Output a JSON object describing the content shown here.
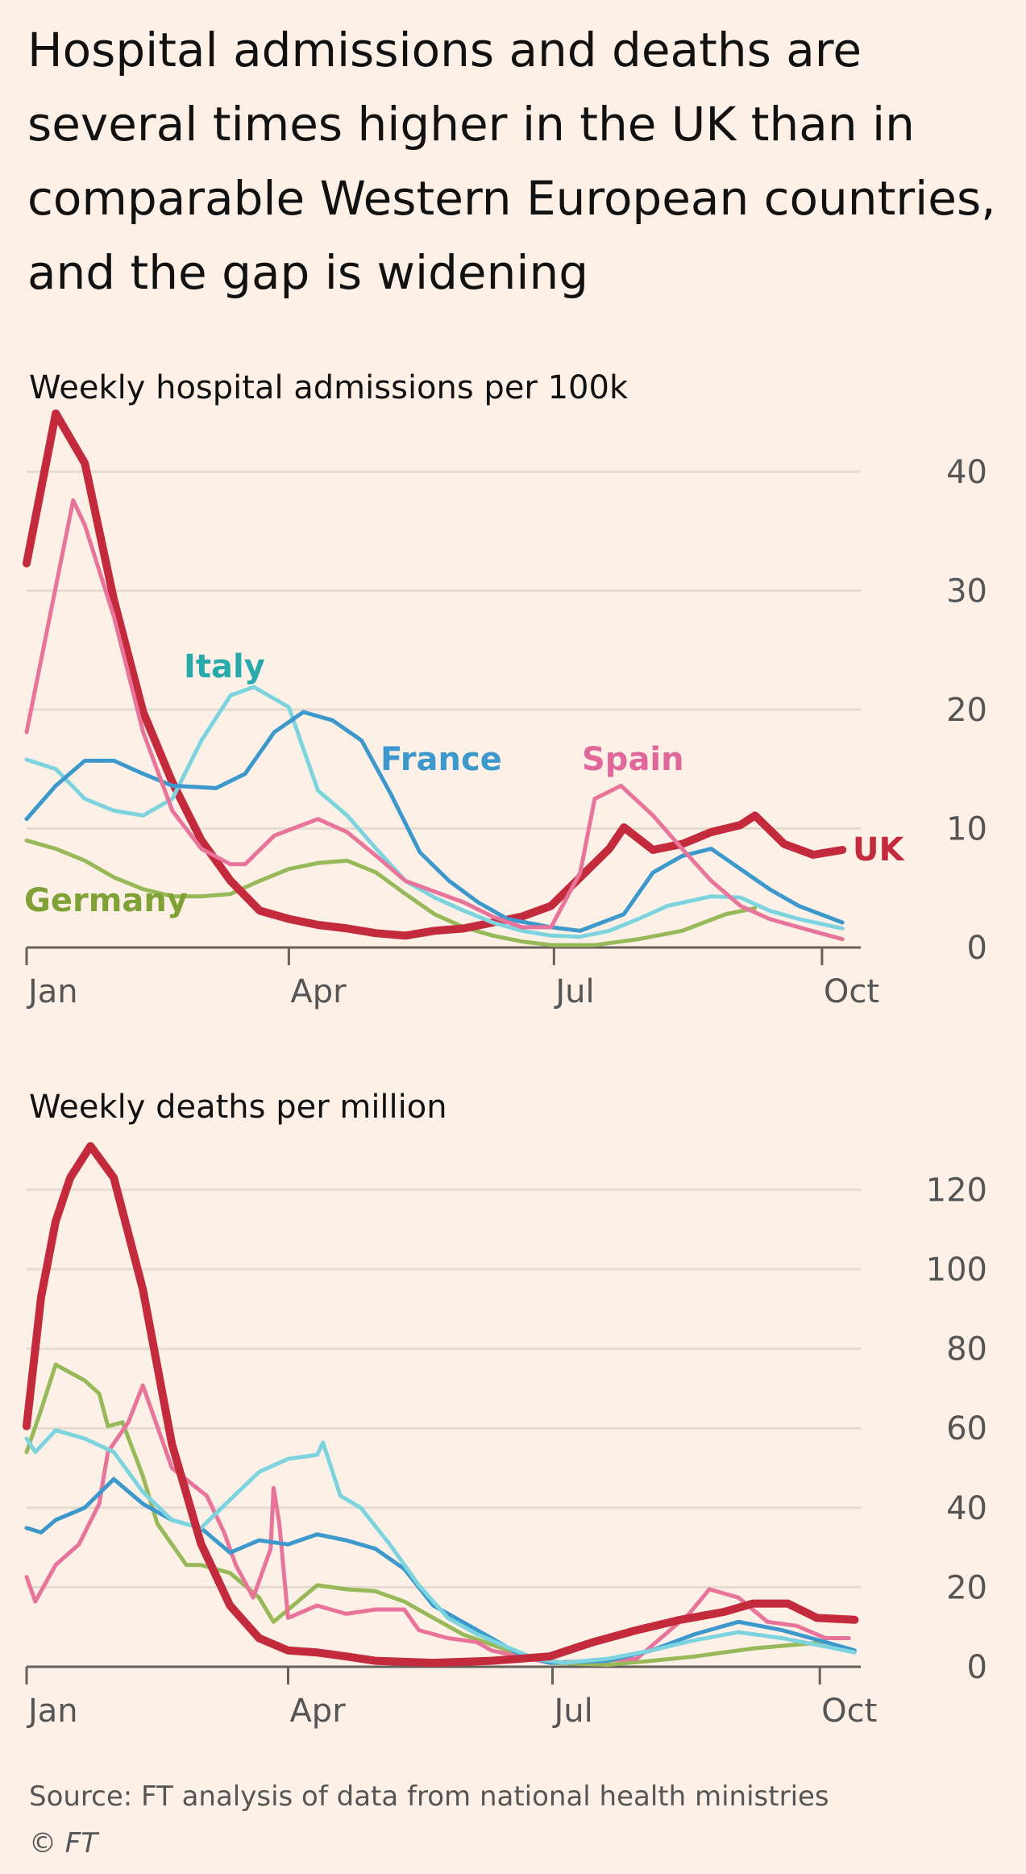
{
  "title": "Hospital admissions and deaths are several times higher in the UK than in comparable Western European countries, and the gap is widening",
  "source": "Source: FT analysis of data from national health ministries",
  "copyright": "© FT",
  "colors": {
    "background": "#fdf1e7",
    "UK": "#c32a3c",
    "Spain": "#e8739b",
    "France": "#3d98cc",
    "Italy": "#7dd4df",
    "Germany": "#98b95a",
    "grid": "#e6dbd1",
    "axis": "#66605a"
  },
  "label_colors": {
    "UK": "#c32a3c",
    "Spain": "#e0679a",
    "France": "#3d98cc",
    "Italy": "#2aa9ad",
    "Germany": "#7fa136"
  },
  "chart_data": [
    {
      "type": "line",
      "title": "Weekly hospital admissions per 100k",
      "xlabel": "",
      "ylabel": "",
      "x_unit": "days since 1 Jan",
      "xticks": [
        {
          "day": 0,
          "label": "Jan"
        },
        {
          "day": 90,
          "label": "Apr"
        },
        {
          "day": 181,
          "label": "Jul"
        },
        {
          "day": 273,
          "label": "Oct"
        }
      ],
      "yticks": [
        0,
        10,
        20,
        30,
        40
      ],
      "ylim": [
        0,
        45
      ],
      "grid": true,
      "series": [
        {
          "name": "Germany",
          "label": "Germany",
          "x": [
            0,
            10,
            20,
            30,
            40,
            50,
            60,
            70,
            80,
            90,
            100,
            110,
            120,
            130,
            140,
            150,
            160,
            170,
            180,
            195,
            210,
            225,
            240,
            250
          ],
          "values": [
            9,
            8.3,
            7.3,
            5.9,
            4.9,
            4.3,
            4.3,
            4.5,
            5.6,
            6.6,
            7.1,
            7.3,
            6.3,
            4.5,
            2.8,
            1.7,
            1,
            0.5,
            0.2,
            0.2,
            0.7,
            1.4,
            2.8,
            3.3
          ]
        },
        {
          "name": "Italy",
          "label": "Italy",
          "x": [
            0,
            10,
            20,
            30,
            40,
            50,
            60,
            70,
            78,
            90,
            100,
            110,
            120,
            130,
            140,
            150,
            160,
            170,
            180,
            190,
            200,
            210,
            220,
            235,
            245,
            255,
            265,
            280
          ],
          "values": [
            15.8,
            15,
            12.5,
            11.5,
            11.1,
            12.5,
            17.4,
            21.2,
            21.9,
            20.2,
            13.2,
            11.1,
            8.3,
            5.6,
            4.2,
            3.1,
            2.1,
            1.4,
            1,
            0.9,
            1.4,
            2.4,
            3.5,
            4.3,
            4.2,
            3.1,
            2.4,
            1.6
          ]
        },
        {
          "name": "France",
          "label": "France",
          "x": [
            0,
            10,
            20,
            30,
            40,
            50,
            65,
            75,
            85,
            95,
            105,
            115,
            125,
            135,
            145,
            155,
            165,
            180,
            190,
            205,
            215,
            225,
            235,
            245,
            255,
            265,
            280
          ],
          "values": [
            10.8,
            13.6,
            15.7,
            15.7,
            14.6,
            13.6,
            13.4,
            14.6,
            18.1,
            19.8,
            19.1,
            17.4,
            12.9,
            8,
            5.6,
            3.8,
            2.4,
            1.7,
            1.4,
            2.8,
            6.3,
            7.7,
            8.3,
            6.6,
            4.9,
            3.5,
            2.1
          ]
        },
        {
          "name": "Spain",
          "label": "Spain",
          "x": [
            0,
            16,
            20,
            30,
            40,
            50,
            60,
            70,
            75,
            85,
            100,
            110,
            120,
            130,
            140,
            150,
            160,
            170,
            180,
            190,
            195,
            204,
            215,
            225,
            235,
            245,
            255,
            265,
            280
          ],
          "values": [
            18.1,
            37.6,
            35.5,
            27.8,
            18.1,
            11.5,
            8.3,
            7,
            7,
            9.4,
            10.8,
            9.7,
            7.7,
            5.6,
            4.7,
            3.8,
            2.6,
            1.7,
            1.7,
            6.3,
            12.5,
            13.6,
            11.1,
            8.3,
            5.6,
            3.5,
            2.4,
            1.7,
            0.7
          ]
        },
        {
          "name": "UK",
          "label": "UK",
          "x": [
            0,
            10,
            20,
            30,
            40,
            50,
            60,
            70,
            80,
            90,
            100,
            110,
            120,
            130,
            140,
            150,
            160,
            170,
            180,
            190,
            200,
            205,
            215,
            225,
            235,
            245,
            250,
            260,
            270,
            280
          ],
          "values": [
            32.3,
            44.9,
            40.7,
            29.2,
            19.8,
            13.9,
            9,
            5.6,
            3.1,
            2.4,
            1.9,
            1.6,
            1.2,
            1,
            1.4,
            1.6,
            2.1,
            2.6,
            3.5,
            5.9,
            8.3,
            10.1,
            8.2,
            8.7,
            9.7,
            10.3,
            11.1,
            8.7,
            7.8,
            8.2
          ]
        }
      ]
    },
    {
      "type": "line",
      "title": "Weekly deaths per million",
      "xlabel": "",
      "ylabel": "",
      "x_unit": "days since 1 Jan",
      "xticks": [
        {
          "day": 0,
          "label": "Jan"
        },
        {
          "day": 90,
          "label": "Apr"
        },
        {
          "day": 181,
          "label": "Jul"
        },
        {
          "day": 273,
          "label": "Oct"
        }
      ],
      "yticks": [
        0,
        20,
        40,
        60,
        80,
        100,
        120
      ],
      "ylim": [
        0,
        135
      ],
      "grid": true,
      "series": [
        {
          "name": "Germany",
          "x": [
            0,
            5,
            10,
            20,
            25,
            28,
            33,
            40,
            45,
            55,
            60,
            70,
            80,
            85,
            100,
            110,
            120,
            130,
            140,
            150,
            160,
            170,
            180,
            200,
            215,
            230,
            250,
            275
          ],
          "values": [
            54,
            64.6,
            76,
            72,
            68.7,
            60.5,
            61.5,
            48,
            36,
            25.6,
            25.6,
            23.6,
            17.4,
            11.3,
            20.5,
            19.5,
            19,
            16.4,
            12.3,
            8.2,
            5.6,
            3,
            1,
            0.5,
            1.5,
            2.6,
            4.6,
            6.2
          ]
        },
        {
          "name": "Spain",
          "x": [
            0,
            3,
            10,
            18,
            25,
            28,
            35,
            40,
            50,
            62,
            68,
            72,
            78,
            84,
            85,
            87,
            90,
            100,
            110,
            120,
            130,
            135,
            145,
            155,
            160,
            180,
            210,
            228,
            235,
            245,
            255,
            265,
            275,
            283
          ],
          "values": [
            22.6,
            16.4,
            25.6,
            30.8,
            41,
            54,
            61.5,
            70.8,
            50,
            43,
            33.8,
            25.6,
            17.4,
            29.7,
            45,
            36,
            12.3,
            15.4,
            13.3,
            14.4,
            14.4,
            9.2,
            7.2,
            6.2,
            4.1,
            1,
            2,
            13.3,
            19.5,
            17.4,
            11.3,
            10.3,
            7.2,
            7.2
          ]
        },
        {
          "name": "France",
          "x": [
            0,
            5,
            10,
            20,
            30,
            40,
            50,
            60,
            70,
            80,
            90,
            100,
            110,
            120,
            130,
            140,
            150,
            160,
            170,
            180,
            200,
            215,
            230,
            245,
            260,
            275,
            285
          ],
          "values": [
            34.9,
            33.8,
            36.9,
            40,
            47.2,
            41,
            36.9,
            34.9,
            28.7,
            31.8,
            30.8,
            33.3,
            31.8,
            29.7,
            24.6,
            15.4,
            11.3,
            7.2,
            3,
            1,
            1.5,
            4.1,
            8.2,
            11.3,
            9.2,
            6.2,
            4.1
          ]
        },
        {
          "name": "Italy",
          "x": [
            0,
            3,
            10,
            20,
            30,
            40,
            50,
            60,
            70,
            80,
            90,
            100,
            102,
            108,
            115,
            125,
            135,
            145,
            155,
            165,
            175,
            185,
            200,
            215,
            230,
            245,
            260,
            275,
            285
          ],
          "values": [
            57.4,
            54,
            59.5,
            57.4,
            54,
            44,
            36.9,
            34.9,
            42,
            49,
            52.3,
            53.3,
            56.4,
            43,
            40,
            30.8,
            20.5,
            12.3,
            8.2,
            5.1,
            2,
            1,
            2,
            4.1,
            6.7,
            8.7,
            7.2,
            5.1,
            3.6
          ]
        },
        {
          "name": "UK",
          "x": [
            0,
            5,
            10,
            15,
            22,
            30,
            40,
            50,
            60,
            70,
            80,
            90,
            100,
            110,
            120,
            140,
            160,
            180,
            195,
            210,
            225,
            240,
            250,
            262,
            272,
            285
          ],
          "values": [
            60.5,
            93,
            112,
            123,
            131,
            123,
            95,
            56,
            31,
            15.4,
            7.2,
            4.1,
            3.6,
            2.6,
            1.5,
            1,
            1.5,
            2.6,
            6.2,
            9.2,
            11.8,
            13.8,
            15.9,
            15.9,
            12.3,
            11.8
          ]
        }
      ]
    }
  ]
}
